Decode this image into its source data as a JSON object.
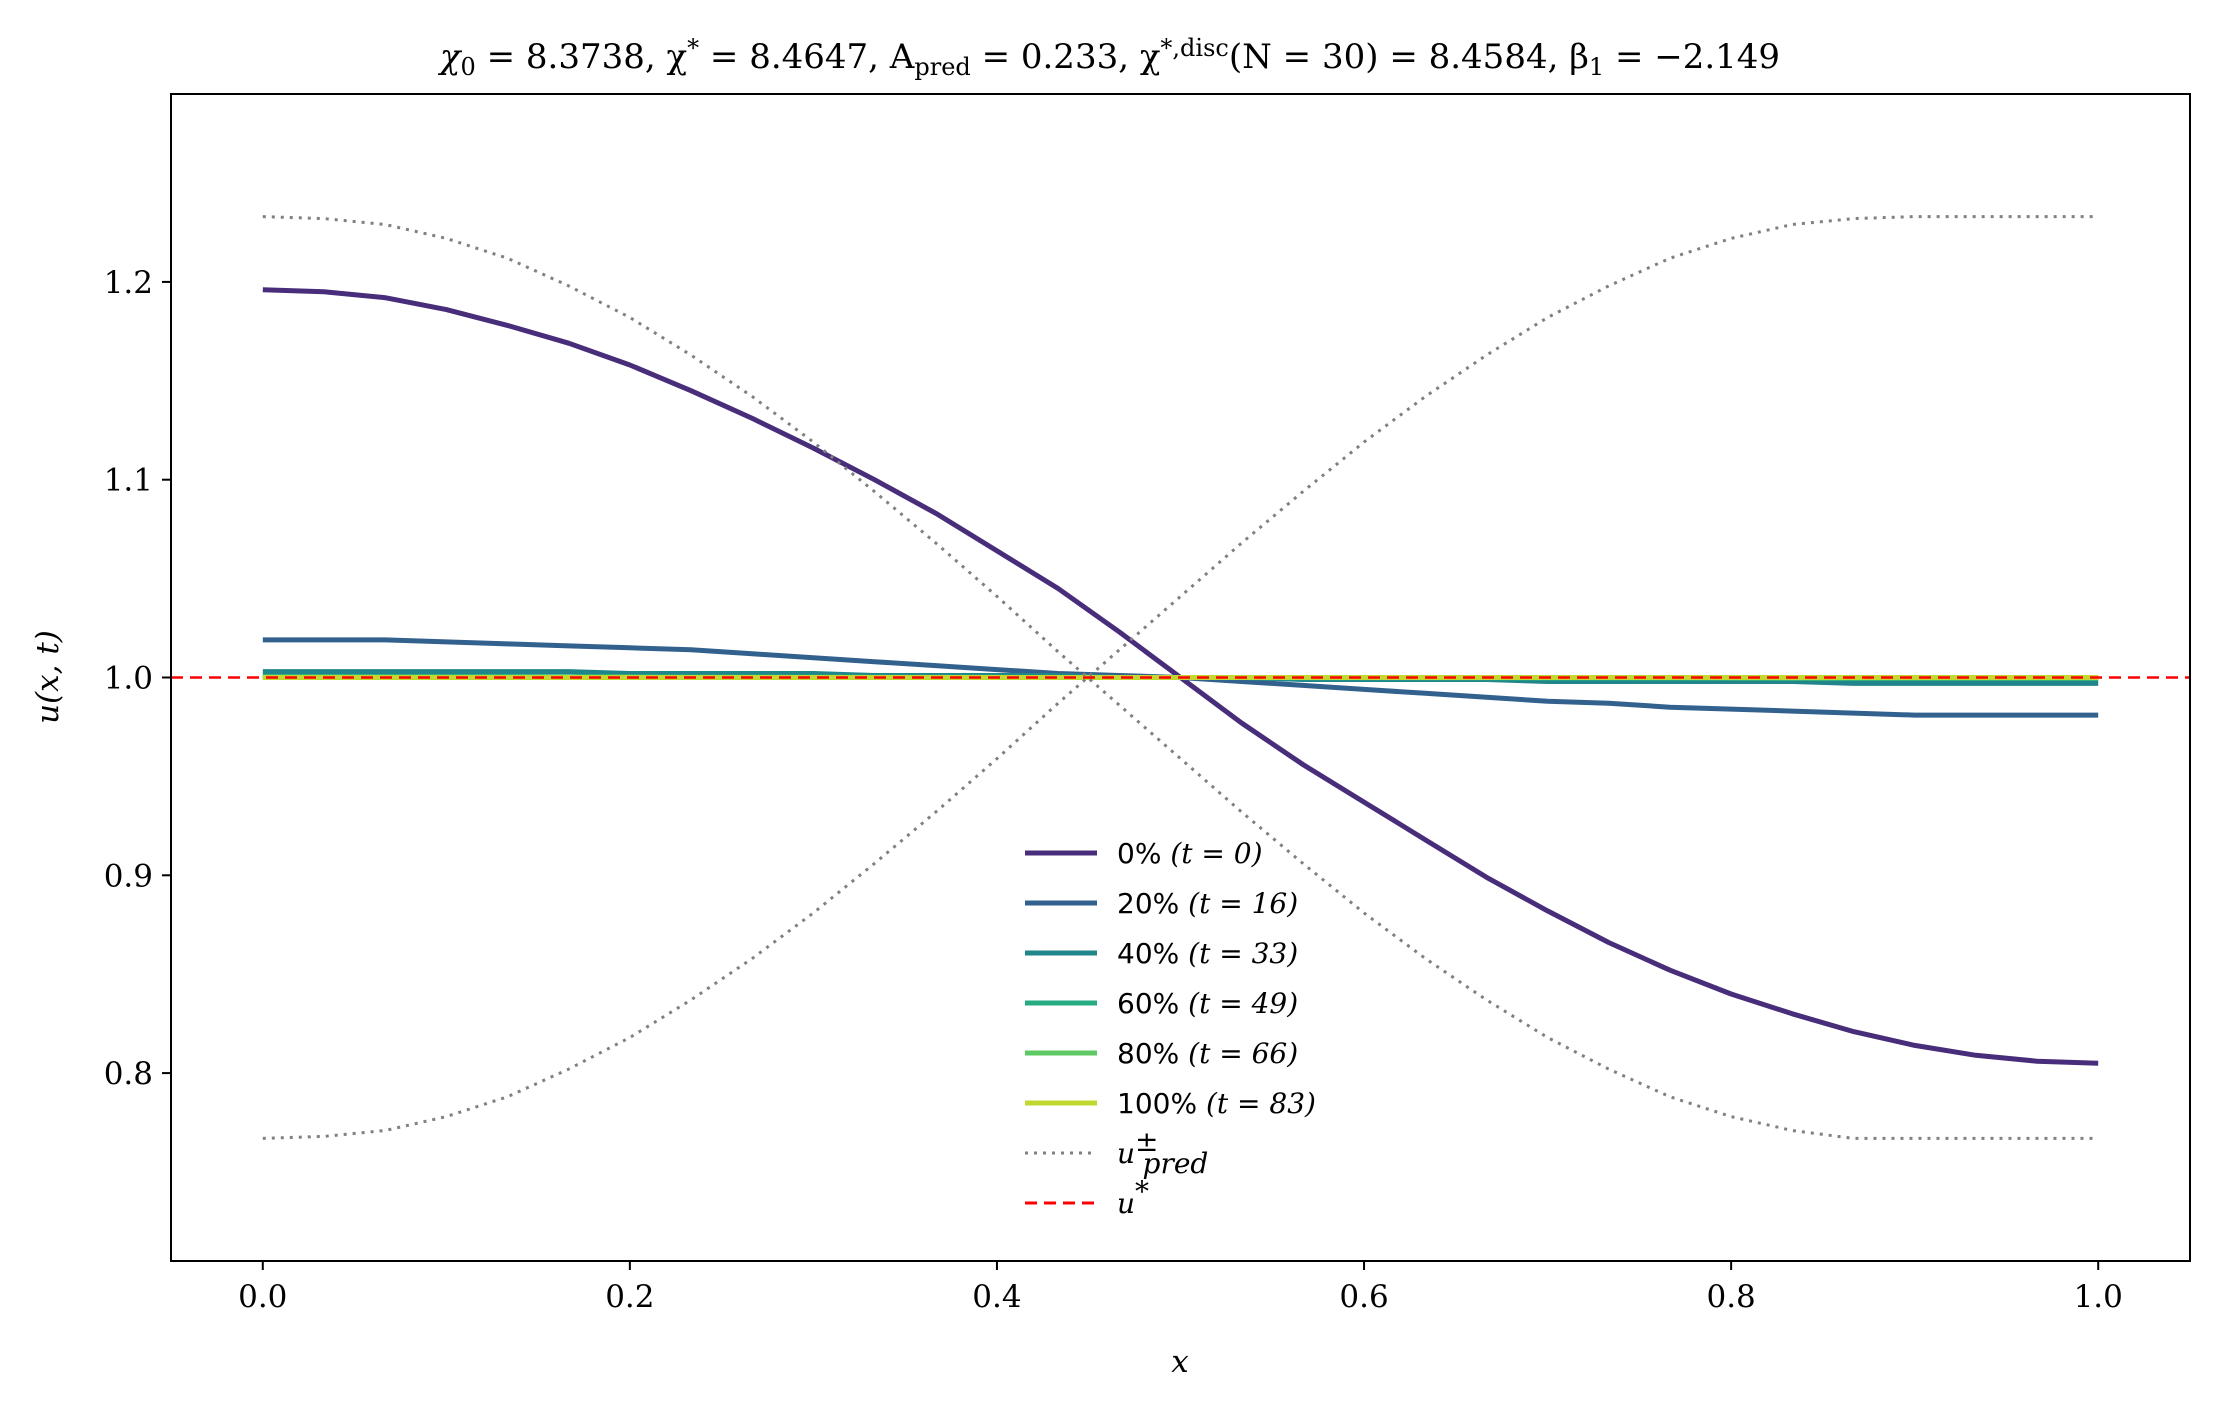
{
  "chart_data": {
    "type": "line",
    "title": "χ₀ = 8.3738,  χ* = 8.4647,  A_pred = 0.233,  χ*,disc(N = 30) = 8.4584,  β₁ = −2.149",
    "title_parts": {
      "p1": "χ",
      "p1_sub": "0",
      "p2": " = 8.3738,  χ",
      "p2_sup": "*",
      "p3": " = 8.4647,  A",
      "p3_sub": "pred",
      "p4": " = 0.233,  χ",
      "p4_sup": "*,disc",
      "p5": "(N = 30) = 8.4584,  β",
      "p5_sub": "1",
      "p6": " = −2.149"
    },
    "xlabel": "x",
    "ylabel": "u(x, t)",
    "xlim": [
      -0.05,
      1.05
    ],
    "ylim": [
      0.705,
      1.295
    ],
    "xticks": [
      {
        "value": 0.0,
        "label": "0.0"
      },
      {
        "value": 0.2,
        "label": "0.2"
      },
      {
        "value": 0.4,
        "label": "0.4"
      },
      {
        "value": 0.6,
        "label": "0.6"
      },
      {
        "value": 0.8,
        "label": "0.8"
      },
      {
        "value": 1.0,
        "label": "1.0"
      }
    ],
    "yticks": [
      {
        "value": 0.8,
        "label": "0.8"
      },
      {
        "value": 0.9,
        "label": "0.9"
      },
      {
        "value": 1.0,
        "label": "1.0"
      },
      {
        "value": 1.1,
        "label": "1.1"
      },
      {
        "value": 1.2,
        "label": "1.2"
      }
    ],
    "grid": false,
    "legend_position": "lower-center",
    "x": [
      0.0,
      0.0333,
      0.0667,
      0.1,
      0.1333,
      0.1667,
      0.2,
      0.2333,
      0.2667,
      0.3,
      0.3333,
      0.3667,
      0.4,
      0.4333,
      0.4667,
      0.5,
      0.5333,
      0.5667,
      0.6,
      0.6333,
      0.6667,
      0.7,
      0.7333,
      0.7667,
      0.8,
      0.8333,
      0.8667,
      0.9,
      0.9333,
      0.9667,
      1.0
    ],
    "series": [
      {
        "name": "0%",
        "legend_math": "(t = 0)",
        "color": "#482d7b",
        "style": "solid",
        "values": [
          1.196,
          1.195,
          1.192,
          1.186,
          1.178,
          1.169,
          1.158,
          1.145,
          1.131,
          1.116,
          1.1,
          1.083,
          1.064,
          1.045,
          1.023,
          1.0,
          0.977,
          0.956,
          0.937,
          0.918,
          0.899,
          0.882,
          0.866,
          0.852,
          0.84,
          0.83,
          0.821,
          0.814,
          0.809,
          0.806,
          0.805
        ]
      },
      {
        "name": "20%",
        "legend_math": "(t = 16)",
        "color": "#33618d",
        "style": "solid",
        "values": [
          1.019,
          1.019,
          1.019,
          1.018,
          1.017,
          1.016,
          1.015,
          1.014,
          1.012,
          1.01,
          1.008,
          1.006,
          1.004,
          1.002,
          1.001,
          1.0,
          0.998,
          0.996,
          0.994,
          0.992,
          0.99,
          0.988,
          0.987,
          0.985,
          0.984,
          0.983,
          0.982,
          0.981,
          0.981,
          0.981,
          0.981
        ]
      },
      {
        "name": "40%",
        "legend_math": "(t = 33)",
        "color": "#20868b",
        "style": "solid",
        "values": [
          1.003,
          1.003,
          1.003,
          1.003,
          1.003,
          1.003,
          1.002,
          1.002,
          1.002,
          1.002,
          1.001,
          1.001,
          1.001,
          1.001,
          1.0,
          1.0,
          1.0,
          0.999,
          0.999,
          0.999,
          0.999,
          0.998,
          0.998,
          0.998,
          0.998,
          0.998,
          0.997,
          0.997,
          0.997,
          0.997,
          0.997
        ]
      },
      {
        "name": "60%",
        "legend_math": "(t = 49)",
        "color": "#27ab82",
        "style": "solid",
        "values": [
          1.0005,
          1.0005,
          1.0005,
          1.0005,
          1.0005,
          1.0004,
          1.0004,
          1.0003,
          1.0003,
          1.0002,
          1.0002,
          1.0001,
          1.0001,
          1.0,
          1.0,
          1.0,
          1.0,
          0.9999,
          0.9999,
          0.9998,
          0.9998,
          0.9997,
          0.9997,
          0.9996,
          0.9996,
          0.9995,
          0.9995,
          0.9995,
          0.9995,
          0.9995,
          0.9995
        ]
      },
      {
        "name": "80%",
        "legend_math": "(t = 66)",
        "color": "#5ec962",
        "style": "solid",
        "values": [
          1.0001,
          1.0001,
          1.0001,
          1.0001,
          1.0001,
          1.0001,
          1.0001,
          1.0,
          1.0,
          1.0,
          1.0,
          1.0,
          1.0,
          1.0,
          1.0,
          1.0,
          1.0,
          1.0,
          1.0,
          1.0,
          1.0,
          1.0,
          1.0,
          1.0,
          0.9999,
          0.9999,
          0.9999,
          0.9999,
          0.9999,
          0.9999,
          0.9999
        ]
      },
      {
        "name": "100%",
        "legend_math": "(t = 83)",
        "color": "#c0d82f",
        "style": "solid",
        "values": [
          1.0,
          1.0,
          1.0,
          1.0,
          1.0,
          1.0,
          1.0,
          1.0,
          1.0,
          1.0,
          1.0,
          1.0,
          1.0,
          1.0,
          1.0,
          1.0,
          1.0,
          1.0,
          1.0,
          1.0,
          1.0,
          1.0,
          1.0,
          1.0,
          1.0,
          1.0,
          1.0,
          1.0,
          1.0,
          1.0,
          1.0
        ]
      },
      {
        "name": "u_pred^+",
        "legend_math": "",
        "color": "#808080",
        "style": "dotted",
        "values": [
          1.233,
          1.232,
          1.229,
          1.222,
          1.212,
          1.198,
          1.182,
          1.163,
          1.142,
          1.119,
          1.094,
          1.068,
          1.041,
          1.013,
          0.986,
          0.959,
          0.932,
          0.906,
          0.881,
          0.858,
          0.837,
          0.818,
          0.802,
          0.788,
          0.778,
          0.771,
          0.767,
          0.767,
          0.767,
          0.767,
          0.767
        ]
      },
      {
        "name": "u_pred^-",
        "legend_math": "",
        "color": "#808080",
        "style": "dotted",
        "values": [
          0.767,
          0.768,
          0.771,
          0.778,
          0.788,
          0.802,
          0.818,
          0.837,
          0.858,
          0.881,
          0.906,
          0.932,
          0.959,
          0.987,
          1.014,
          1.041,
          1.068,
          1.094,
          1.119,
          1.142,
          1.163,
          1.182,
          1.198,
          1.212,
          1.222,
          1.229,
          1.232,
          1.233,
          1.233,
          1.233,
          1.233
        ]
      }
    ],
    "reference_line": {
      "name": "u*",
      "y": 1.0,
      "color": "#ff0000",
      "style": "dashed"
    },
    "legend_entries": [
      {
        "label": "0%",
        "math": "(t = 0)",
        "color": "#482d7b",
        "style": "solid"
      },
      {
        "label": "20%",
        "math": "(t = 16)",
        "color": "#33618d",
        "style": "solid"
      },
      {
        "label": "40%",
        "math": "(t = 33)",
        "color": "#20868b",
        "style": "solid"
      },
      {
        "label": "60%",
        "math": "(t = 49)",
        "color": "#27ab82",
        "style": "solid"
      },
      {
        "label": "80%",
        "math": "(t = 66)",
        "color": "#5ec962",
        "style": "solid"
      },
      {
        "label": "100%",
        "math": "(t = 83)",
        "color": "#c0d82f",
        "style": "solid"
      },
      {
        "label": "",
        "math": "u",
        "math_sup": "±",
        "math_sub": "pred",
        "color": "#808080",
        "style": "dotted"
      },
      {
        "label": "",
        "math": "u",
        "math_sup": "*",
        "math_sub": "",
        "color": "#ff0000",
        "style": "dashed"
      }
    ]
  }
}
